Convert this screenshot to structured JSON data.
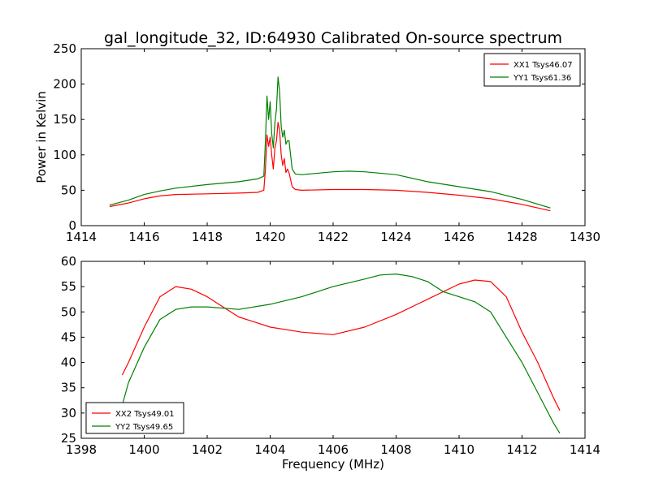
{
  "figure": {
    "title": "gal_longitude_32, ID:64930 Calibrated On-source spectrum"
  },
  "colors": {
    "XX": "#ff0000",
    "YY": "#008000"
  },
  "chart_data": [
    {
      "type": "line",
      "title": "gal_longitude_32, ID:64930 Calibrated On-source spectrum",
      "xlabel": "",
      "ylabel": "Power in Kelvin",
      "xlim": [
        1414,
        1430
      ],
      "ylim": [
        0,
        250
      ],
      "xticks": [
        1414,
        1416,
        1418,
        1420,
        1422,
        1424,
        1426,
        1428,
        1430
      ],
      "yticks": [
        0,
        50,
        100,
        150,
        200,
        250
      ],
      "grid": false,
      "legend": "top-right",
      "series": [
        {
          "name": "XX1 Tsys46.07",
          "color": "#ff0000",
          "x": [
            1414.9,
            1415.5,
            1416.0,
            1416.5,
            1417.0,
            1418.0,
            1419.0,
            1419.6,
            1419.8,
            1419.85,
            1419.9,
            1419.95,
            1420.0,
            1420.05,
            1420.1,
            1420.15,
            1420.2,
            1420.25,
            1420.3,
            1420.35,
            1420.4,
            1420.45,
            1420.5,
            1420.55,
            1420.6,
            1420.7,
            1420.8,
            1421.0,
            1422.0,
            1423.0,
            1424.0,
            1425.0,
            1426.0,
            1427.0,
            1428.0,
            1428.9
          ],
          "y": [
            27,
            32,
            38,
            42,
            44,
            45,
            46,
            47,
            50,
            80,
            128,
            112,
            125,
            100,
            80,
            110,
            120,
            146,
            135,
            100,
            85,
            95,
            75,
            80,
            75,
            55,
            51,
            50,
            51,
            51,
            50,
            47,
            43,
            38,
            30,
            21
          ]
        },
        {
          "name": "YY1 Tsys61.36",
          "color": "#008000",
          "x": [
            1414.9,
            1415.5,
            1416.0,
            1416.5,
            1417.0,
            1418.0,
            1419.0,
            1419.6,
            1419.8,
            1419.85,
            1419.9,
            1419.95,
            1420.0,
            1420.05,
            1420.1,
            1420.15,
            1420.2,
            1420.25,
            1420.3,
            1420.35,
            1420.4,
            1420.45,
            1420.5,
            1420.55,
            1420.6,
            1420.7,
            1420.8,
            1421.0,
            1422.0,
            1422.5,
            1423.0,
            1424.0,
            1425.0,
            1426.0,
            1427.0,
            1428.0,
            1428.9
          ],
          "y": [
            29,
            36,
            44,
            49,
            53,
            58,
            62,
            66,
            70,
            120,
            183,
            150,
            175,
            130,
            110,
            145,
            165,
            210,
            190,
            140,
            125,
            135,
            115,
            120,
            120,
            80,
            73,
            72,
            76,
            77,
            76,
            72,
            62,
            55,
            48,
            37,
            25
          ]
        }
      ]
    },
    {
      "type": "line",
      "title": "",
      "xlabel": "Frequency (MHz)",
      "ylabel": "",
      "xlim": [
        1398,
        1414
      ],
      "ylim": [
        25,
        60
      ],
      "xticks": [
        1398,
        1400,
        1402,
        1404,
        1406,
        1408,
        1410,
        1412,
        1414
      ],
      "yticks": [
        25,
        30,
        35,
        40,
        45,
        50,
        55,
        60
      ],
      "grid": false,
      "legend": "bottom-left",
      "series": [
        {
          "name": "XX2 Tsys49.01",
          "color": "#ff0000",
          "x": [
            1399.3,
            1399.5,
            1400.0,
            1400.5,
            1401.0,
            1401.5,
            1402.0,
            1402.5,
            1403.0,
            1403.5,
            1404.0,
            1405.0,
            1406.0,
            1407.0,
            1408.0,
            1409.0,
            1410.0,
            1410.5,
            1411.0,
            1411.5,
            1412.0,
            1412.5,
            1413.0,
            1413.2
          ],
          "y": [
            37.5,
            40,
            47,
            53,
            55,
            54.5,
            53,
            51,
            49,
            48,
            47,
            46,
            45.5,
            47,
            49.5,
            52.5,
            55.5,
            56.3,
            56,
            53,
            46,
            40,
            33,
            30.5
          ]
        },
        {
          "name": "YY2 Tsys49.65",
          "color": "#008000",
          "x": [
            1399.3,
            1399.5,
            1400.0,
            1400.5,
            1401.0,
            1401.5,
            1402.0,
            1403.0,
            1404.0,
            1405.0,
            1406.0,
            1407.0,
            1407.5,
            1408.0,
            1408.5,
            1409.0,
            1409.5,
            1410.0,
            1410.5,
            1411.0,
            1411.5,
            1412.0,
            1412.5,
            1413.0,
            1413.2
          ],
          "y": [
            31.5,
            36,
            43,
            48.5,
            50.5,
            51,
            51,
            50.5,
            51.5,
            53,
            55,
            56.5,
            57.3,
            57.5,
            57,
            56,
            54,
            53,
            52,
            50,
            45,
            40,
            34,
            28,
            26
          ]
        }
      ]
    }
  ]
}
